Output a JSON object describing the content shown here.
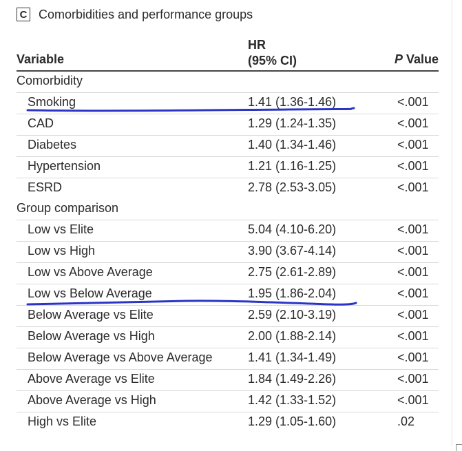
{
  "panel": {
    "letter": "C",
    "title": "Comorbidities and performance groups"
  },
  "columns": {
    "variable": "Variable",
    "hr_line1": "HR",
    "hr_line2": "(95% CI)",
    "p_italic": "P",
    "p_plain": " Value"
  },
  "sections": [
    {
      "label": "Comorbidity",
      "rows": [
        {
          "variable": "Smoking",
          "hr": "1.41 (1.36-1.46)",
          "p": "<.001"
        },
        {
          "variable": "CAD",
          "hr": "1.29 (1.24-1.35)",
          "p": "<.001"
        },
        {
          "variable": "Diabetes",
          "hr": "1.40 (1.34-1.46)",
          "p": "<.001"
        },
        {
          "variable": "Hypertension",
          "hr": "1.21 (1.16-1.25)",
          "p": "<.001"
        },
        {
          "variable": "ESRD",
          "hr": "2.78 (2.53-3.05)",
          "p": "<.001"
        }
      ]
    },
    {
      "label": "Group comparison",
      "rows": [
        {
          "variable": "Low vs Elite",
          "hr": "5.04 (4.10-6.20)",
          "p": "<.001"
        },
        {
          "variable": "Low vs High",
          "hr": "3.90 (3.67-4.14)",
          "p": "<.001"
        },
        {
          "variable": "Low vs Above Average",
          "hr": "2.75 (2.61-2.89)",
          "p": "<.001"
        },
        {
          "variable": "Low vs Below Average",
          "hr": "1.95 (1.86-2.04)",
          "p": "<.001"
        },
        {
          "variable": "Below Average vs Elite",
          "hr": "2.59 (2.10-3.19)",
          "p": "<.001"
        },
        {
          "variable": "Below Average vs High",
          "hr": "2.00 (1.88-2.14)",
          "p": "<.001"
        },
        {
          "variable": "Below Average vs Above Average",
          "hr": "1.41 (1.34-1.49)",
          "p": "<.001"
        },
        {
          "variable": "Above Average vs Elite",
          "hr": "1.84 (1.49-2.26)",
          "p": "<.001"
        },
        {
          "variable": "Above Average vs High",
          "hr": "1.42 (1.33-1.52)",
          "p": "<.001"
        },
        {
          "variable": "High vs Elite",
          "hr": "1.29 (1.05-1.60)",
          "p": ".02"
        }
      ]
    }
  ],
  "annotations": {
    "ink_color": "#2a35c8",
    "underlined_rows": [
      "Smoking",
      "Low vs Below Average"
    ]
  }
}
